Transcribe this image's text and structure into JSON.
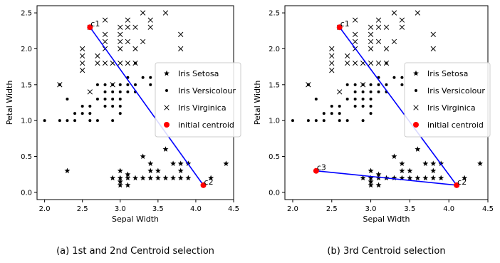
{
  "chart_data": [
    {
      "type": "scatter",
      "caption": "(a) 1st and 2nd Centroid selection",
      "xlabel": "Sepal Width",
      "ylabel": "Petal Width",
      "xlim": [
        1.9,
        4.5
      ],
      "ylim": [
        -0.1,
        2.6
      ],
      "xticks": [
        "2.0",
        "2.5",
        "3.0",
        "3.5",
        "4.0",
        "4.5"
      ],
      "yticks": [
        "0.0",
        "0.5",
        "1.0",
        "1.5",
        "2.0",
        "2.5"
      ],
      "legend_position": "center-right",
      "series": [
        {
          "name": "Iris Setosa",
          "marker": "star",
          "points": [
            [
              2.3,
              0.3
            ],
            [
              2.9,
              0.2
            ],
            [
              3.0,
              0.1
            ],
            [
              3.0,
              0.2
            ],
            [
              3.0,
              0.3
            ],
            [
              3.1,
              0.1
            ],
            [
              3.1,
              0.2
            ],
            [
              3.2,
              0.2
            ],
            [
              3.3,
              0.2
            ],
            [
              3.4,
              0.2
            ],
            [
              3.5,
              0.2
            ],
            [
              3.6,
              0.2
            ],
            [
              3.7,
              0.2
            ],
            [
              3.8,
              0.2
            ],
            [
              3.9,
              0.2
            ],
            [
              3.0,
              0.15
            ],
            [
              3.1,
              0.25
            ],
            [
              3.3,
              0.5
            ],
            [
              3.4,
              0.3
            ],
            [
              3.4,
              0.4
            ],
            [
              3.5,
              0.3
            ],
            [
              3.6,
              0.6
            ],
            [
              3.7,
              0.4
            ],
            [
              3.8,
              0.3
            ],
            [
              3.8,
              0.4
            ],
            [
              3.9,
              0.4
            ],
            [
              4.1,
              0.1
            ],
            [
              4.2,
              0.2
            ],
            [
              4.4,
              0.4
            ]
          ]
        },
        {
          "name": "Iris Versicolour",
          "marker": "dot",
          "points": [
            [
              2.0,
              1.0
            ],
            [
              2.2,
              1.0
            ],
            [
              2.2,
              1.5
            ],
            [
              2.3,
              1.0
            ],
            [
              2.3,
              1.3
            ],
            [
              2.4,
              1.0
            ],
            [
              2.4,
              1.1
            ],
            [
              2.5,
              1.1
            ],
            [
              2.5,
              1.2
            ],
            [
              2.6,
              1.0
            ],
            [
              2.6,
              1.1
            ],
            [
              2.6,
              1.2
            ],
            [
              2.7,
              1.0
            ],
            [
              2.7,
              1.3
            ],
            [
              2.7,
              1.5
            ],
            [
              2.8,
              1.2
            ],
            [
              2.8,
              1.3
            ],
            [
              2.8,
              1.5
            ],
            [
              2.9,
              1.3
            ],
            [
              2.9,
              1.4
            ],
            [
              2.9,
              1.5
            ],
            [
              3.0,
              1.3
            ],
            [
              3.0,
              1.4
            ],
            [
              3.0,
              1.5
            ],
            [
              3.1,
              1.4
            ],
            [
              3.1,
              1.5
            ],
            [
              3.2,
              1.4
            ],
            [
              3.2,
              1.5
            ],
            [
              3.3,
              1.6
            ],
            [
              3.4,
              1.5
            ],
            [
              2.9,
              1.0
            ],
            [
              3.0,
              1.1
            ],
            [
              3.1,
              1.6
            ],
            [
              3.2,
              1.8
            ],
            [
              2.8,
              1.4
            ],
            [
              3.0,
              1.2
            ],
            [
              2.9,
              1.2
            ],
            [
              3.4,
              1.6
            ]
          ]
        },
        {
          "name": "Iris Virginica",
          "marker": "x",
          "points": [
            [
              2.2,
              1.5
            ],
            [
              2.5,
              1.8
            ],
            [
              2.5,
              1.9
            ],
            [
              2.5,
              2.0
            ],
            [
              2.6,
              1.4
            ],
            [
              2.6,
              2.3
            ],
            [
              2.7,
              1.8
            ],
            [
              2.7,
              1.9
            ],
            [
              2.8,
              1.8
            ],
            [
              2.8,
              2.0
            ],
            [
              2.8,
              2.1
            ],
            [
              2.8,
              2.2
            ],
            [
              2.8,
              2.4
            ],
            [
              2.9,
              1.8
            ],
            [
              3.0,
              1.8
            ],
            [
              3.0,
              2.0
            ],
            [
              3.0,
              2.1
            ],
            [
              3.0,
              2.2
            ],
            [
              3.0,
              2.3
            ],
            [
              3.1,
              1.8
            ],
            [
              3.1,
              2.1
            ],
            [
              3.1,
              2.3
            ],
            [
              3.1,
              2.4
            ],
            [
              3.2,
              1.8
            ],
            [
              3.2,
              2.0
            ],
            [
              3.2,
              2.3
            ],
            [
              3.3,
              2.1
            ],
            [
              3.3,
              2.5
            ],
            [
              3.4,
              2.3
            ],
            [
              3.4,
              2.4
            ],
            [
              3.6,
              2.5
            ],
            [
              3.8,
              2.0
            ],
            [
              3.8,
              2.2
            ],
            [
              2.9,
              1.5
            ],
            [
              2.5,
              1.7
            ]
          ]
        }
      ],
      "centroids": [
        {
          "label": "c1",
          "x": 2.6,
          "y": 2.3
        },
        {
          "label": "c2",
          "x": 4.1,
          "y": 0.1
        }
      ],
      "centroid_legend": "initial centroid",
      "links": [
        [
          "c1",
          "c2"
        ]
      ]
    },
    {
      "type": "scatter",
      "caption": "(b) 3rd Centroid selection",
      "xlabel": "Sepal Width",
      "ylabel": "Petal Width",
      "xlim": [
        1.9,
        4.5
      ],
      "ylim": [
        -0.1,
        2.6
      ],
      "xticks": [
        "2.0",
        "2.5",
        "3.0",
        "3.5",
        "4.0",
        "4.5"
      ],
      "yticks": [
        "0.0",
        "0.5",
        "1.0",
        "1.5",
        "2.0",
        "2.5"
      ],
      "legend_position": "center-right",
      "series": [
        {
          "name": "Iris Setosa",
          "marker": "star",
          "points": [
            [
              2.3,
              0.3
            ],
            [
              2.9,
              0.2
            ],
            [
              3.0,
              0.1
            ],
            [
              3.0,
              0.2
            ],
            [
              3.0,
              0.3
            ],
            [
              3.1,
              0.1
            ],
            [
              3.1,
              0.2
            ],
            [
              3.2,
              0.2
            ],
            [
              3.3,
              0.2
            ],
            [
              3.4,
              0.2
            ],
            [
              3.5,
              0.2
            ],
            [
              3.6,
              0.2
            ],
            [
              3.7,
              0.2
            ],
            [
              3.8,
              0.2
            ],
            [
              3.9,
              0.2
            ],
            [
              3.0,
              0.15
            ],
            [
              3.1,
              0.25
            ],
            [
              3.3,
              0.5
            ],
            [
              3.4,
              0.3
            ],
            [
              3.4,
              0.4
            ],
            [
              3.5,
              0.3
            ],
            [
              3.6,
              0.6
            ],
            [
              3.7,
              0.4
            ],
            [
              3.8,
              0.3
            ],
            [
              3.8,
              0.4
            ],
            [
              3.9,
              0.4
            ],
            [
              4.1,
              0.1
            ],
            [
              4.2,
              0.2
            ],
            [
              4.4,
              0.4
            ]
          ]
        },
        {
          "name": "Iris Versicolour",
          "marker": "dot",
          "points": [
            [
              2.0,
              1.0
            ],
            [
              2.2,
              1.0
            ],
            [
              2.2,
              1.5
            ],
            [
              2.3,
              1.0
            ],
            [
              2.3,
              1.3
            ],
            [
              2.4,
              1.0
            ],
            [
              2.4,
              1.1
            ],
            [
              2.5,
              1.1
            ],
            [
              2.5,
              1.2
            ],
            [
              2.6,
              1.0
            ],
            [
              2.6,
              1.1
            ],
            [
              2.6,
              1.2
            ],
            [
              2.7,
              1.0
            ],
            [
              2.7,
              1.3
            ],
            [
              2.7,
              1.5
            ],
            [
              2.8,
              1.2
            ],
            [
              2.8,
              1.3
            ],
            [
              2.8,
              1.5
            ],
            [
              2.9,
              1.3
            ],
            [
              2.9,
              1.4
            ],
            [
              2.9,
              1.5
            ],
            [
              3.0,
              1.3
            ],
            [
              3.0,
              1.4
            ],
            [
              3.0,
              1.5
            ],
            [
              3.1,
              1.4
            ],
            [
              3.1,
              1.5
            ],
            [
              3.2,
              1.4
            ],
            [
              3.2,
              1.5
            ],
            [
              3.3,
              1.6
            ],
            [
              3.4,
              1.5
            ],
            [
              2.9,
              1.0
            ],
            [
              3.0,
              1.1
            ],
            [
              3.1,
              1.6
            ],
            [
              3.2,
              1.8
            ],
            [
              2.8,
              1.4
            ],
            [
              3.0,
              1.2
            ],
            [
              2.9,
              1.2
            ],
            [
              3.4,
              1.6
            ]
          ]
        },
        {
          "name": "Iris Virginica",
          "marker": "x",
          "points": [
            [
              2.2,
              1.5
            ],
            [
              2.5,
              1.8
            ],
            [
              2.5,
              1.9
            ],
            [
              2.5,
              2.0
            ],
            [
              2.6,
              1.4
            ],
            [
              2.6,
              2.3
            ],
            [
              2.7,
              1.8
            ],
            [
              2.7,
              1.9
            ],
            [
              2.8,
              1.8
            ],
            [
              2.8,
              2.0
            ],
            [
              2.8,
              2.1
            ],
            [
              2.8,
              2.2
            ],
            [
              2.8,
              2.4
            ],
            [
              2.9,
              1.8
            ],
            [
              3.0,
              1.8
            ],
            [
              3.0,
              2.0
            ],
            [
              3.0,
              2.1
            ],
            [
              3.0,
              2.2
            ],
            [
              3.0,
              2.3
            ],
            [
              3.1,
              1.8
            ],
            [
              3.1,
              2.1
            ],
            [
              3.1,
              2.3
            ],
            [
              3.1,
              2.4
            ],
            [
              3.2,
              1.8
            ],
            [
              3.2,
              2.0
            ],
            [
              3.2,
              2.3
            ],
            [
              3.3,
              2.1
            ],
            [
              3.3,
              2.5
            ],
            [
              3.4,
              2.3
            ],
            [
              3.4,
              2.4
            ],
            [
              3.6,
              2.5
            ],
            [
              3.8,
              2.0
            ],
            [
              3.8,
              2.2
            ],
            [
              2.9,
              1.5
            ],
            [
              2.5,
              1.7
            ]
          ]
        }
      ],
      "centroids": [
        {
          "label": "c1",
          "x": 2.6,
          "y": 2.3
        },
        {
          "label": "c2",
          "x": 4.1,
          "y": 0.1
        },
        {
          "label": "c3",
          "x": 2.3,
          "y": 0.3
        }
      ],
      "centroid_legend": "initial centroid",
      "links": [
        [
          "c1",
          "c2"
        ],
        [
          "c3",
          "c2"
        ]
      ]
    }
  ],
  "colors": {
    "marker": "#000000",
    "centroid": "#ff0000",
    "link": "#0000ff",
    "axis": "#000000",
    "legend_border": "#cccccc"
  }
}
